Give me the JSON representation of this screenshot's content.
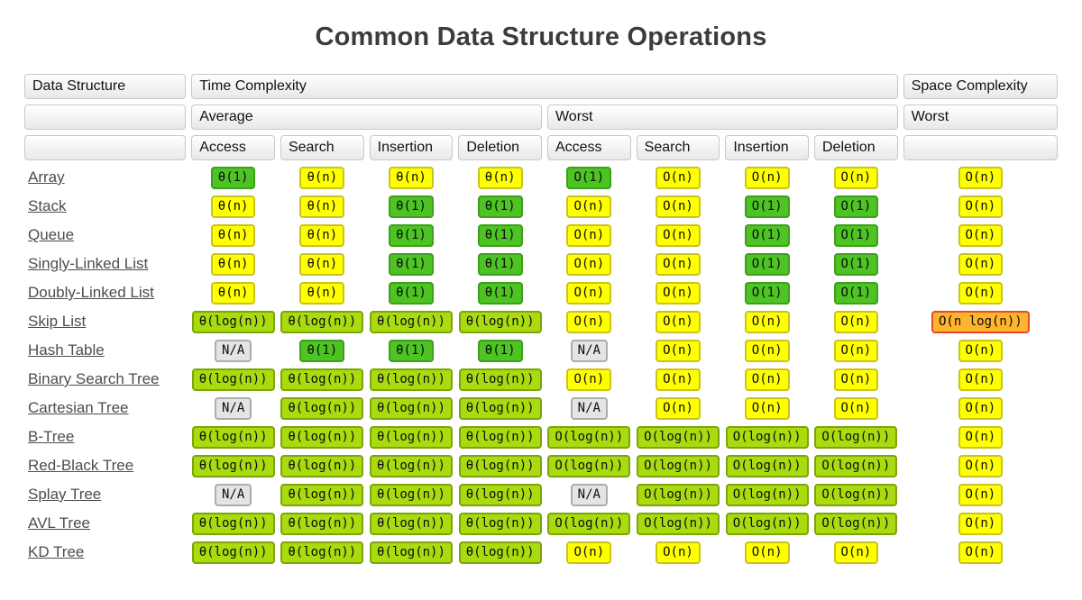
{
  "title": "Common Data Structure Operations",
  "colors": {
    "green": {
      "bg": "#4dc324",
      "border": "#3f9e1c"
    },
    "yellow": {
      "bg": "#ffff00",
      "border": "#c9c41b"
    },
    "yellowgreen": {
      "bg": "#a9db0f",
      "border": "#7fa30a"
    },
    "orange": {
      "bg": "#ffb42b",
      "border": "#e54a26"
    },
    "gray": {
      "bg": "#e4e4e4",
      "border": "#adadad"
    }
  },
  "table": {
    "header": {
      "data_structure": "Data Structure",
      "time_complexity": "Time Complexity",
      "space_complexity": "Space Complexity",
      "average": "Average",
      "worst": "Worst",
      "space_worst": "Worst",
      "operations": [
        "Access",
        "Search",
        "Insertion",
        "Deletion",
        "Access",
        "Search",
        "Insertion",
        "Deletion"
      ]
    },
    "rows": [
      {
        "name": "Array",
        "cells": [
          {
            "v": "θ(1)",
            "c": "green"
          },
          {
            "v": "θ(n)",
            "c": "yellow"
          },
          {
            "v": "θ(n)",
            "c": "yellow"
          },
          {
            "v": "θ(n)",
            "c": "yellow"
          },
          {
            "v": "O(1)",
            "c": "green"
          },
          {
            "v": "O(n)",
            "c": "yellow"
          },
          {
            "v": "O(n)",
            "c": "yellow"
          },
          {
            "v": "O(n)",
            "c": "yellow"
          },
          {
            "v": "O(n)",
            "c": "yellow"
          }
        ]
      },
      {
        "name": "Stack",
        "cells": [
          {
            "v": "θ(n)",
            "c": "yellow"
          },
          {
            "v": "θ(n)",
            "c": "yellow"
          },
          {
            "v": "θ(1)",
            "c": "green"
          },
          {
            "v": "θ(1)",
            "c": "green"
          },
          {
            "v": "O(n)",
            "c": "yellow"
          },
          {
            "v": "O(n)",
            "c": "yellow"
          },
          {
            "v": "O(1)",
            "c": "green"
          },
          {
            "v": "O(1)",
            "c": "green"
          },
          {
            "v": "O(n)",
            "c": "yellow"
          }
        ]
      },
      {
        "name": "Queue",
        "cells": [
          {
            "v": "θ(n)",
            "c": "yellow"
          },
          {
            "v": "θ(n)",
            "c": "yellow"
          },
          {
            "v": "θ(1)",
            "c": "green"
          },
          {
            "v": "θ(1)",
            "c": "green"
          },
          {
            "v": "O(n)",
            "c": "yellow"
          },
          {
            "v": "O(n)",
            "c": "yellow"
          },
          {
            "v": "O(1)",
            "c": "green"
          },
          {
            "v": "O(1)",
            "c": "green"
          },
          {
            "v": "O(n)",
            "c": "yellow"
          }
        ]
      },
      {
        "name": "Singly-Linked List",
        "cells": [
          {
            "v": "θ(n)",
            "c": "yellow"
          },
          {
            "v": "θ(n)",
            "c": "yellow"
          },
          {
            "v": "θ(1)",
            "c": "green"
          },
          {
            "v": "θ(1)",
            "c": "green"
          },
          {
            "v": "O(n)",
            "c": "yellow"
          },
          {
            "v": "O(n)",
            "c": "yellow"
          },
          {
            "v": "O(1)",
            "c": "green"
          },
          {
            "v": "O(1)",
            "c": "green"
          },
          {
            "v": "O(n)",
            "c": "yellow"
          }
        ]
      },
      {
        "name": "Doubly-Linked List",
        "cells": [
          {
            "v": "θ(n)",
            "c": "yellow"
          },
          {
            "v": "θ(n)",
            "c": "yellow"
          },
          {
            "v": "θ(1)",
            "c": "green"
          },
          {
            "v": "θ(1)",
            "c": "green"
          },
          {
            "v": "O(n)",
            "c": "yellow"
          },
          {
            "v": "O(n)",
            "c": "yellow"
          },
          {
            "v": "O(1)",
            "c": "green"
          },
          {
            "v": "O(1)",
            "c": "green"
          },
          {
            "v": "O(n)",
            "c": "yellow"
          }
        ]
      },
      {
        "name": "Skip List",
        "cells": [
          {
            "v": "θ(log(n))",
            "c": "yellowgreen"
          },
          {
            "v": "θ(log(n))",
            "c": "yellowgreen"
          },
          {
            "v": "θ(log(n))",
            "c": "yellowgreen"
          },
          {
            "v": "θ(log(n))",
            "c": "yellowgreen"
          },
          {
            "v": "O(n)",
            "c": "yellow"
          },
          {
            "v": "O(n)",
            "c": "yellow"
          },
          {
            "v": "O(n)",
            "c": "yellow"
          },
          {
            "v": "O(n)",
            "c": "yellow"
          },
          {
            "v": "O(n log(n))",
            "c": "orange"
          }
        ]
      },
      {
        "name": "Hash Table",
        "cells": [
          {
            "v": "N/A",
            "c": "gray"
          },
          {
            "v": "θ(1)",
            "c": "green"
          },
          {
            "v": "θ(1)",
            "c": "green"
          },
          {
            "v": "θ(1)",
            "c": "green"
          },
          {
            "v": "N/A",
            "c": "gray"
          },
          {
            "v": "O(n)",
            "c": "yellow"
          },
          {
            "v": "O(n)",
            "c": "yellow"
          },
          {
            "v": "O(n)",
            "c": "yellow"
          },
          {
            "v": "O(n)",
            "c": "yellow"
          }
        ]
      },
      {
        "name": "Binary Search Tree",
        "cells": [
          {
            "v": "θ(log(n))",
            "c": "yellowgreen"
          },
          {
            "v": "θ(log(n))",
            "c": "yellowgreen"
          },
          {
            "v": "θ(log(n))",
            "c": "yellowgreen"
          },
          {
            "v": "θ(log(n))",
            "c": "yellowgreen"
          },
          {
            "v": "O(n)",
            "c": "yellow"
          },
          {
            "v": "O(n)",
            "c": "yellow"
          },
          {
            "v": "O(n)",
            "c": "yellow"
          },
          {
            "v": "O(n)",
            "c": "yellow"
          },
          {
            "v": "O(n)",
            "c": "yellow"
          }
        ]
      },
      {
        "name": "Cartesian Tree",
        "cells": [
          {
            "v": "N/A",
            "c": "gray"
          },
          {
            "v": "θ(log(n))",
            "c": "yellowgreen"
          },
          {
            "v": "θ(log(n))",
            "c": "yellowgreen"
          },
          {
            "v": "θ(log(n))",
            "c": "yellowgreen"
          },
          {
            "v": "N/A",
            "c": "gray"
          },
          {
            "v": "O(n)",
            "c": "yellow"
          },
          {
            "v": "O(n)",
            "c": "yellow"
          },
          {
            "v": "O(n)",
            "c": "yellow"
          },
          {
            "v": "O(n)",
            "c": "yellow"
          }
        ]
      },
      {
        "name": "B-Tree",
        "cells": [
          {
            "v": "θ(log(n))",
            "c": "yellowgreen"
          },
          {
            "v": "θ(log(n))",
            "c": "yellowgreen"
          },
          {
            "v": "θ(log(n))",
            "c": "yellowgreen"
          },
          {
            "v": "θ(log(n))",
            "c": "yellowgreen"
          },
          {
            "v": "O(log(n))",
            "c": "yellowgreen"
          },
          {
            "v": "O(log(n))",
            "c": "yellowgreen"
          },
          {
            "v": "O(log(n))",
            "c": "yellowgreen"
          },
          {
            "v": "O(log(n))",
            "c": "yellowgreen"
          },
          {
            "v": "O(n)",
            "c": "yellow"
          }
        ]
      },
      {
        "name": "Red-Black Tree",
        "cells": [
          {
            "v": "θ(log(n))",
            "c": "yellowgreen"
          },
          {
            "v": "θ(log(n))",
            "c": "yellowgreen"
          },
          {
            "v": "θ(log(n))",
            "c": "yellowgreen"
          },
          {
            "v": "θ(log(n))",
            "c": "yellowgreen"
          },
          {
            "v": "O(log(n))",
            "c": "yellowgreen"
          },
          {
            "v": "O(log(n))",
            "c": "yellowgreen"
          },
          {
            "v": "O(log(n))",
            "c": "yellowgreen"
          },
          {
            "v": "O(log(n))",
            "c": "yellowgreen"
          },
          {
            "v": "O(n)",
            "c": "yellow"
          }
        ]
      },
      {
        "name": "Splay Tree",
        "cells": [
          {
            "v": "N/A",
            "c": "gray"
          },
          {
            "v": "θ(log(n))",
            "c": "yellowgreen"
          },
          {
            "v": "θ(log(n))",
            "c": "yellowgreen"
          },
          {
            "v": "θ(log(n))",
            "c": "yellowgreen"
          },
          {
            "v": "N/A",
            "c": "gray"
          },
          {
            "v": "O(log(n))",
            "c": "yellowgreen"
          },
          {
            "v": "O(log(n))",
            "c": "yellowgreen"
          },
          {
            "v": "O(log(n))",
            "c": "yellowgreen"
          },
          {
            "v": "O(n)",
            "c": "yellow"
          }
        ]
      },
      {
        "name": "AVL Tree",
        "cells": [
          {
            "v": "θ(log(n))",
            "c": "yellowgreen"
          },
          {
            "v": "θ(log(n))",
            "c": "yellowgreen"
          },
          {
            "v": "θ(log(n))",
            "c": "yellowgreen"
          },
          {
            "v": "θ(log(n))",
            "c": "yellowgreen"
          },
          {
            "v": "O(log(n))",
            "c": "yellowgreen"
          },
          {
            "v": "O(log(n))",
            "c": "yellowgreen"
          },
          {
            "v": "O(log(n))",
            "c": "yellowgreen"
          },
          {
            "v": "O(log(n))",
            "c": "yellowgreen"
          },
          {
            "v": "O(n)",
            "c": "yellow"
          }
        ]
      },
      {
        "name": "KD Tree",
        "cells": [
          {
            "v": "θ(log(n))",
            "c": "yellowgreen"
          },
          {
            "v": "θ(log(n))",
            "c": "yellowgreen"
          },
          {
            "v": "θ(log(n))",
            "c": "yellowgreen"
          },
          {
            "v": "θ(log(n))",
            "c": "yellowgreen"
          },
          {
            "v": "O(n)",
            "c": "yellow"
          },
          {
            "v": "O(n)",
            "c": "yellow"
          },
          {
            "v": "O(n)",
            "c": "yellow"
          },
          {
            "v": "O(n)",
            "c": "yellow"
          },
          {
            "v": "O(n)",
            "c": "yellow"
          }
        ]
      }
    ]
  }
}
